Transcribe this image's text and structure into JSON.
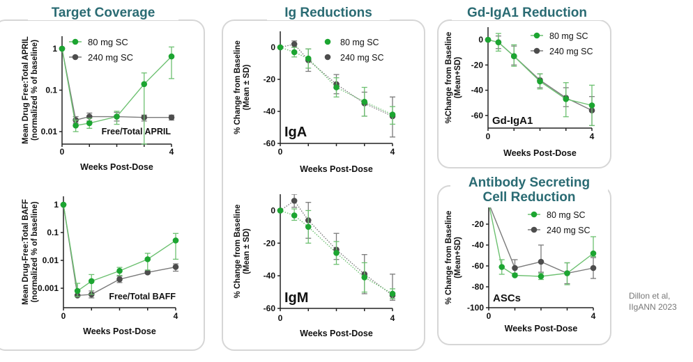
{
  "titles": {
    "target_coverage": "Target Coverage",
    "ig_reductions": "Ig Reductions",
    "gd_iga1": "Gd-IgA1 Reduction",
    "asc": "Antibody  Secreting Cell Reduction"
  },
  "citation": [
    "Dillon et al,",
    "IIgANN 2023"
  ],
  "colors": {
    "dose_80": "#1ca531",
    "dose_240": "#4d4d4d",
    "line_80": "#6cc070",
    "line_240": "#7a7a7a",
    "title": "#2a6b73"
  },
  "chart_data": [
    {
      "id": "april",
      "type": "line",
      "yscale": "log",
      "ylabel": [
        "Mean Drug Free:Total APRIL",
        "(normalized % of baseline)"
      ],
      "xlabel": "Weeks Post-Dose",
      "annotation": "Free/Total APRIL",
      "xlim": [
        0,
        4
      ],
      "xticks": [
        "0",
        "4"
      ],
      "ylim": [
        0.005,
        2
      ],
      "yticks": [
        "1",
        "0.1",
        "0.01"
      ],
      "legend": "top-left",
      "series": [
        {
          "name": "80 mg SC",
          "x": [
            0,
            0.5,
            1,
            2,
            3,
            4
          ],
          "y": [
            1,
            0.014,
            0.016,
            0.023,
            0.14,
            0.65
          ],
          "err_low": [
            1,
            0.01,
            0.012,
            0.015,
            0.005,
            0.19
          ],
          "err_high": [
            1,
            0.019,
            0.021,
            0.031,
            0.26,
            1.1
          ]
        },
        {
          "name": "240 mg SC",
          "x": [
            0,
            0.5,
            1,
            2,
            3,
            4
          ],
          "y": [
            1,
            0.019,
            0.023,
            0.023,
            0.022,
            0.022
          ],
          "err_low": [
            1,
            0.016,
            0.018,
            0.018,
            0.018,
            0.019
          ],
          "err_high": [
            1,
            0.023,
            0.028,
            0.029,
            0.025,
            0.025
          ]
        }
      ]
    },
    {
      "id": "baff",
      "type": "line",
      "yscale": "log",
      "ylabel": [
        "Mean Drug-Free:Total BAFF",
        "(normalized % of baseline)"
      ],
      "xlabel": "Weeks Post-Dose",
      "annotation": "Free/Total BAFF",
      "xlim": [
        0,
        4
      ],
      "xticks": [
        "0",
        "4"
      ],
      "ylim": [
        0.0002,
        2
      ],
      "yticks": [
        "1",
        "0.1",
        "0.01",
        "0.001"
      ],
      "series": [
        {
          "name": "80 mg SC",
          "x": [
            0,
            0.5,
            1,
            2,
            3,
            4
          ],
          "y": [
            1,
            0.0008,
            0.0018,
            0.0042,
            0.011,
            0.052
          ],
          "err_low": [
            1,
            0.0005,
            0.0006,
            0.0029,
            0.0045,
            0.011
          ],
          "err_high": [
            1,
            0.0015,
            0.0031,
            0.0056,
            0.018,
            0.093
          ]
        },
        {
          "name": "240 mg SC",
          "x": [
            0,
            0.5,
            1,
            2,
            3,
            4
          ],
          "y": [
            1,
            0.00055,
            0.0006,
            0.0021,
            0.0037,
            0.0058
          ],
          "err_low": [
            1,
            0.0005,
            0.00045,
            0.0016,
            0.0033,
            0.0041
          ],
          "err_high": [
            1,
            0.0006,
            0.0008,
            0.0027,
            0.0041,
            0.0075
          ]
        }
      ]
    },
    {
      "id": "iga",
      "type": "line",
      "yscale": "linear",
      "dotted": true,
      "ylabel": [
        "% Change from Baseline",
        "(Mean ± SD)"
      ],
      "xlabel": "Weeks Post-Dose",
      "annotation": "IgA",
      "xlim": [
        0,
        4
      ],
      "xticks": [
        "0",
        "4"
      ],
      "ylim": [
        -60,
        10
      ],
      "yticks": [
        "0",
        "-20",
        "-40",
        "-60"
      ],
      "legend": "top-right",
      "series": [
        {
          "name": "80 mg SC",
          "x": [
            0,
            0.5,
            1,
            2,
            3,
            4
          ],
          "y": [
            0,
            -3,
            -7,
            -25,
            -34,
            -42
          ],
          "err_low": [
            0,
            -6,
            -13,
            -31,
            -43,
            -48
          ],
          "err_high": [
            0,
            0,
            -1,
            -19,
            -25,
            -37
          ]
        },
        {
          "name": "240 mg SC",
          "x": [
            0,
            0.5,
            1,
            2,
            3,
            4
          ],
          "y": [
            0,
            2,
            -8,
            -23,
            -35,
            -43
          ],
          "err_low": [
            0,
            0,
            -15,
            -29,
            -43,
            -56
          ],
          "err_high": [
            0,
            4,
            -1,
            -17,
            -28,
            -31
          ]
        }
      ]
    },
    {
      "id": "igm",
      "type": "line",
      "yscale": "linear",
      "dotted": true,
      "ylabel": [
        "% Change from Baseline",
        "(Mean ± SD)"
      ],
      "xlabel": "Weeks Post-Dose",
      "annotation": "IgM",
      "xlim": [
        0,
        4
      ],
      "xticks": [
        "0",
        "4"
      ],
      "ylim": [
        -60,
        10
      ],
      "yticks": [
        "0",
        "-20",
        "-40",
        "-60"
      ],
      "series": [
        {
          "name": "80 mg SC",
          "x": [
            0,
            0.5,
            1,
            2,
            3,
            4
          ],
          "y": [
            0,
            -3,
            -10,
            -26,
            -41,
            -51
          ],
          "err_low": [
            0,
            -6,
            -20,
            -33,
            -50,
            -54
          ],
          "err_high": [
            0,
            1,
            0,
            -19,
            -32,
            -48
          ]
        },
        {
          "name": "240 mg SC",
          "x": [
            0,
            0.5,
            1,
            2,
            3,
            4
          ],
          "y": [
            0,
            6,
            -6,
            -24,
            -39,
            -52
          ],
          "err_low": [
            0,
            2,
            -17,
            -30,
            -51,
            -55
          ],
          "err_high": [
            0,
            10,
            5,
            -14,
            -27,
            -39
          ]
        }
      ]
    },
    {
      "id": "gd",
      "type": "line",
      "yscale": "linear",
      "ylabel": [
        "%Change from Baseline",
        "(Mean+SD)"
      ],
      "xlabel": "Weeks Post-Dose",
      "annotation": "Gd-IgA1",
      "xlim": [
        0,
        4
      ],
      "xticks": [
        "0",
        "4"
      ],
      "ylim": [
        -70,
        10
      ],
      "yticks": [
        "0",
        "-20",
        "-40",
        "-60"
      ],
      "legend": "top-right",
      "series": [
        {
          "name": "80 mg SC",
          "x": [
            0,
            0.4,
            1,
            2,
            3,
            4
          ],
          "y": [
            0,
            -2,
            -13,
            -33,
            -47,
            -52
          ],
          "err_low": [
            0,
            -9,
            -21,
            -39,
            -61,
            -68
          ],
          "err_high": [
            0,
            5,
            -4,
            -27,
            -34,
            -36
          ]
        },
        {
          "name": "240 mg  SC",
          "x": [
            0,
            0.4,
            1,
            2,
            3,
            4
          ],
          "y": [
            0,
            -2,
            -13,
            -32,
            -46,
            -56
          ],
          "err_low": [
            0,
            -7,
            -20,
            -38,
            -53,
            -68
          ],
          "err_high": [
            0,
            3,
            -5,
            -27,
            -38,
            -45
          ]
        }
      ]
    },
    {
      "id": "asc",
      "type": "line",
      "yscale": "linear",
      "ylabel": [
        "% Change from Baseline",
        "(Mean+SD)"
      ],
      "xlabel": "Weeks Post-Dose",
      "annotation": "ASCs",
      "xlim": [
        0,
        4
      ],
      "xticks": [
        "0",
        "4"
      ],
      "ylim": [
        -100,
        -4
      ],
      "yticks": [
        "-20",
        "-40",
        "-60",
        "-80",
        "-100"
      ],
      "legend": "top-right",
      "series": [
        {
          "name": "80 mg SC",
          "x": [
            0,
            0.5,
            1,
            2,
            3,
            4
          ],
          "y": [
            0,
            -61,
            -69,
            -70,
            -67,
            -48
          ],
          "err_low": [
            0,
            -68,
            -70,
            -73,
            -78,
            -51
          ],
          "err_high": [
            0,
            -54,
            -67,
            -67,
            -57,
            -32
          ]
        },
        {
          "name": "240 mg SC",
          "x": [
            0,
            1,
            2,
            3,
            4
          ],
          "y": [
            0,
            -62,
            -56,
            -67,
            -62
          ],
          "err_low": [
            0,
            -69,
            -66,
            -77,
            -72
          ],
          "err_high": [
            0,
            -54,
            -40,
            -57,
            -52
          ]
        }
      ]
    }
  ]
}
